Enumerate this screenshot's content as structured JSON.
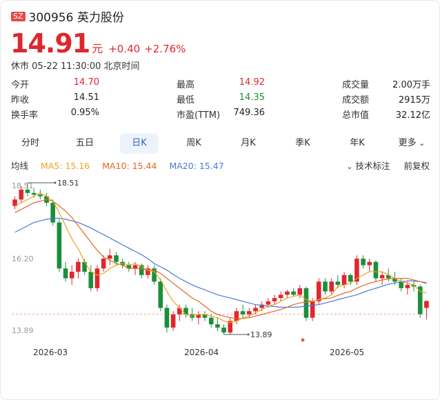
{
  "header": {
    "market_badge": "SZ",
    "title": "300956 英力股份"
  },
  "quote": {
    "price": "14.91",
    "unit": "元",
    "change": "+0.40",
    "change_pct": "+2.76%",
    "status": "休市 05-22 11:30:00 北京时间"
  },
  "stats": [
    {
      "label": "今开",
      "value": "14.70",
      "color": "#e0262e"
    },
    {
      "label": "最高",
      "value": "14.92",
      "color": "#e0262e"
    },
    {
      "label": "成交量",
      "value": "2.00万手",
      "color": "#222"
    },
    {
      "label": "昨收",
      "value": "14.51",
      "color": "#222"
    },
    {
      "label": "最低",
      "value": "14.35",
      "color": "#1a8f3a"
    },
    {
      "label": "成交额",
      "value": "2915万",
      "color": "#222"
    },
    {
      "label": "换手率",
      "value": "0.95%",
      "color": "#222"
    },
    {
      "label": "市盈(TTM)",
      "value": "749.36",
      "color": "#222"
    },
    {
      "label": "总市值",
      "value": "32.12亿",
      "color": "#222"
    }
  ],
  "tabs": [
    {
      "label": "分时",
      "active": false
    },
    {
      "label": "五日",
      "active": false
    },
    {
      "label": "日K",
      "active": true
    },
    {
      "label": "周K",
      "active": false
    },
    {
      "label": "月K",
      "active": false
    },
    {
      "label": "季K",
      "active": false
    },
    {
      "label": "年K",
      "active": false
    },
    {
      "label": "更多",
      "active": false
    }
  ],
  "legend": {
    "title": "均线",
    "items": [
      {
        "text": "MA5: 15.16",
        "color": "#f0a020"
      },
      {
        "text": "MA10: 15.44",
        "color": "#e8641e"
      },
      {
        "text": "MA20: 15.47",
        "color": "#4a78d8"
      }
    ]
  },
  "tools": {
    "indicator": "技术标注",
    "adjust": "前复权"
  },
  "chart_data": {
    "type": "candlestick",
    "y_ticks": [
      "18.51",
      "16.20",
      "13.89"
    ],
    "x_ticks": [
      "2026-03",
      "2026-04",
      "2026-05"
    ],
    "prev_close": 14.51,
    "max_label": "18.51",
    "min_label": "13.89",
    "colors": {
      "up": "#e0262e",
      "down": "#1a8f3a",
      "ma5": "#f0a020",
      "ma10": "#e8641e",
      "ma20": "#4a78d8"
    },
    "candles": [
      [
        17.8,
        18.1,
        17.7,
        18.0
      ],
      [
        18.0,
        18.4,
        17.9,
        18.3
      ],
      [
        18.3,
        18.51,
        18.1,
        18.2
      ],
      [
        18.2,
        18.35,
        18.05,
        18.15
      ],
      [
        18.15,
        18.3,
        18.0,
        18.1
      ],
      [
        18.1,
        18.2,
        17.8,
        17.9
      ],
      [
        17.9,
        18.0,
        17.2,
        17.3
      ],
      [
        17.3,
        17.4,
        15.8,
        15.9
      ],
      [
        15.9,
        16.1,
        15.5,
        15.6
      ],
      [
        15.6,
        16.0,
        15.4,
        15.8
      ],
      [
        15.8,
        16.2,
        15.6,
        16.1
      ],
      [
        16.1,
        16.2,
        15.7,
        15.8
      ],
      [
        15.8,
        16.0,
        15.2,
        15.3
      ],
      [
        15.3,
        16.0,
        15.2,
        15.9
      ],
      [
        15.9,
        16.3,
        15.8,
        16.2
      ],
      [
        16.2,
        16.5,
        16.0,
        16.3
      ],
      [
        16.3,
        16.4,
        16.0,
        16.1
      ],
      [
        16.1,
        16.2,
        15.9,
        16.0
      ],
      [
        16.0,
        16.1,
        15.8,
        15.9
      ],
      [
        15.9,
        16.1,
        15.7,
        16.0
      ],
      [
        16.0,
        16.05,
        15.6,
        15.7
      ],
      [
        15.7,
        16.0,
        15.6,
        15.9
      ],
      [
        15.9,
        16.0,
        15.4,
        15.5
      ],
      [
        15.5,
        15.6,
        14.6,
        14.7
      ],
      [
        14.7,
        14.8,
        13.95,
        14.1
      ],
      [
        14.1,
        14.6,
        14.0,
        14.5
      ],
      [
        14.5,
        14.8,
        14.3,
        14.7
      ],
      [
        14.7,
        14.8,
        14.4,
        14.5
      ],
      [
        14.5,
        14.7,
        14.3,
        14.4
      ],
      [
        14.4,
        14.6,
        14.2,
        14.5
      ],
      [
        14.5,
        14.6,
        14.3,
        14.4
      ],
      [
        14.4,
        14.5,
        14.1,
        14.2
      ],
      [
        14.2,
        14.4,
        14.0,
        14.1
      ],
      [
        14.1,
        14.2,
        13.89,
        13.95
      ],
      [
        13.95,
        14.4,
        13.9,
        14.3
      ],
      [
        14.3,
        14.7,
        14.2,
        14.6
      ],
      [
        14.6,
        14.8,
        14.4,
        14.5
      ],
      [
        14.5,
        14.7,
        14.4,
        14.6
      ],
      [
        14.6,
        14.8,
        14.5,
        14.7
      ],
      [
        14.7,
        14.9,
        14.6,
        14.8
      ],
      [
        14.8,
        15.0,
        14.7,
        14.9
      ],
      [
        14.9,
        15.1,
        14.8,
        15.0
      ],
      [
        15.0,
        15.2,
        14.9,
        15.1
      ],
      [
        15.1,
        15.25,
        15.0,
        15.2
      ],
      [
        15.2,
        15.3,
        15.05,
        15.1
      ],
      [
        15.1,
        15.4,
        15.0,
        15.3
      ],
      [
        15.3,
        15.35,
        14.3,
        14.4
      ],
      [
        14.4,
        15.0,
        14.3,
        14.9
      ],
      [
        14.9,
        15.6,
        14.8,
        15.5
      ],
      [
        15.5,
        15.6,
        15.1,
        15.2
      ],
      [
        15.2,
        15.6,
        15.1,
        15.5
      ],
      [
        15.5,
        15.7,
        15.3,
        15.4
      ],
      [
        15.4,
        15.8,
        15.3,
        15.7
      ],
      [
        15.7,
        15.75,
        15.4,
        15.5
      ],
      [
        15.5,
        16.3,
        15.4,
        16.2
      ],
      [
        16.2,
        16.3,
        15.9,
        16.0
      ],
      [
        16.0,
        16.2,
        15.8,
        16.1
      ],
      [
        16.1,
        16.15,
        15.5,
        15.6
      ],
      [
        15.6,
        15.8,
        15.4,
        15.7
      ],
      [
        15.7,
        15.9,
        15.5,
        15.6
      ],
      [
        15.6,
        15.8,
        15.4,
        15.5
      ],
      [
        15.5,
        15.6,
        15.2,
        15.3
      ],
      [
        15.3,
        15.5,
        15.1,
        15.4
      ],
      [
        15.4,
        15.5,
        15.2,
        15.35
      ],
      [
        15.35,
        15.4,
        14.4,
        14.51
      ],
      [
        14.7,
        14.92,
        14.35,
        14.91
      ]
    ],
    "ma5": [
      17.8,
      17.9,
      18.0,
      18.1,
      18.2,
      18.1,
      17.95,
      17.6,
      17.2,
      16.8,
      16.5,
      16.1,
      15.8,
      15.7,
      15.75,
      15.9,
      16.0,
      16.05,
      16.0,
      16.05,
      15.95,
      15.85,
      15.8,
      15.55,
      15.2,
      14.9,
      14.7,
      14.5,
      14.45,
      14.5,
      14.5,
      14.45,
      14.4,
      14.3,
      14.25,
      14.3,
      14.4,
      14.45,
      14.55,
      14.65,
      14.75,
      14.8,
      14.9,
      15.0,
      15.05,
      15.1,
      14.95,
      14.9,
      14.95,
      15.0,
      15.1,
      15.35,
      15.4,
      15.45,
      15.6,
      15.7,
      15.8,
      15.8,
      15.8,
      15.7,
      15.6,
      15.5,
      15.45,
      15.4,
      15.2,
      15.16
    ],
    "ma10": [
      17.6,
      17.7,
      17.8,
      17.9,
      17.95,
      18.0,
      17.95,
      17.8,
      17.65,
      17.45,
      17.2,
      16.95,
      16.7,
      16.45,
      16.25,
      16.15,
      16.05,
      16.0,
      15.9,
      15.9,
      15.9,
      15.85,
      15.85,
      15.75,
      15.6,
      15.45,
      15.3,
      15.15,
      15.0,
      14.9,
      14.75,
      14.6,
      14.5,
      14.45,
      14.4,
      14.38,
      14.38,
      14.4,
      14.45,
      14.5,
      14.55,
      14.6,
      14.65,
      14.72,
      14.8,
      14.85,
      14.88,
      14.9,
      14.95,
      14.98,
      15.0,
      15.08,
      15.15,
      15.2,
      15.3,
      15.38,
      15.45,
      15.5,
      15.55,
      15.58,
      15.6,
      15.6,
      15.6,
      15.55,
      15.5,
      15.44
    ],
    "ma20": [
      17.0,
      17.1,
      17.2,
      17.3,
      17.35,
      17.4,
      17.42,
      17.43,
      17.4,
      17.35,
      17.3,
      17.22,
      17.13,
      17.03,
      16.93,
      16.83,
      16.72,
      16.62,
      16.52,
      16.42,
      16.32,
      16.2,
      16.05,
      15.95,
      15.85,
      15.72,
      15.6,
      15.5,
      15.4,
      15.32,
      15.25,
      15.17,
      15.1,
      15.05,
      15.0,
      14.95,
      14.9,
      14.85,
      14.8,
      14.78,
      14.76,
      14.74,
      14.72,
      14.72,
      14.72,
      14.73,
      14.75,
      14.78,
      14.8,
      14.85,
      14.9,
      14.95,
      15.0,
      15.05,
      15.1,
      15.17,
      15.24,
      15.3,
      15.36,
      15.42,
      15.46,
      15.5,
      15.52,
      15.52,
      15.5,
      15.47
    ]
  }
}
